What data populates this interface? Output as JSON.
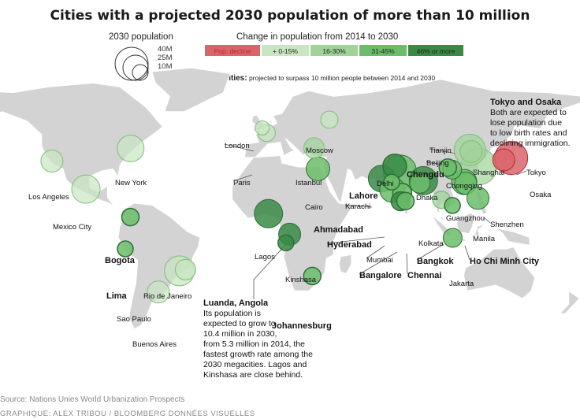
{
  "title": "Cities with a projected 2030 population of more than 10 million",
  "legend": {
    "size_title": "2030 population",
    "size_labels": [
      "40M",
      "25M",
      "10M"
    ],
    "color_title": "Change in population from 2014 to 2030",
    "color_bins": [
      {
        "label": "Pop. decline",
        "color": "#d9656b",
        "label_color": "#c0282f"
      },
      {
        "label": "+ 0-15%",
        "color": "#c7e6c1",
        "label_color": "#222222"
      },
      {
        "label": "16-30%",
        "color": "#9fd398",
        "label_color": "#222222"
      },
      {
        "label": "31-45%",
        "color": "#6bbd6a",
        "label_color": "#222222"
      },
      {
        "label": "46% or more",
        "color": "#3a8a46",
        "label_color": "#222222"
      }
    ],
    "bold_note_label": "Bolded cities:",
    "bold_note_text": " projected to surpass 10 million people between 2014 and 2030"
  },
  "cities": [
    {
      "name": "London",
      "bold": false,
      "bin": 1,
      "lon": -0.1,
      "lat": 51.5
    },
    {
      "name": "Paris",
      "bold": false,
      "bin": 1,
      "lon": 2.4,
      "lat": 48.9
    },
    {
      "name": "Moscow",
      "bold": false,
      "bin": 1,
      "lon": 37.6,
      "lat": 55.8
    },
    {
      "name": "Istanbul",
      "bold": false,
      "bin": 2,
      "lon": 29.0,
      "lat": 41.0
    },
    {
      "name": "Cairo",
      "bold": false,
      "bin": 3,
      "lon": 31.2,
      "lat": 30.0
    },
    {
      "name": "New York",
      "bold": false,
      "bin": 1,
      "lon": -74.0,
      "lat": 40.7
    },
    {
      "name": "Los Angeles",
      "bold": false,
      "bin": 1,
      "lon": -118.2,
      "lat": 34.1
    },
    {
      "name": "Mexico City",
      "bold": false,
      "bin": 1,
      "lon": -99.1,
      "lat": 19.4
    },
    {
      "name": "Bogota",
      "bold": true,
      "bin": 3,
      "lon": -74.1,
      "lat": 4.7
    },
    {
      "name": "Lima",
      "bold": true,
      "bin": 3,
      "lon": -77.0,
      "lat": -12.0
    },
    {
      "name": "Rio de Janeiro",
      "bold": false,
      "bin": 1,
      "lon": -43.2,
      "lat": -22.9
    },
    {
      "name": "Sao Paulo",
      "bold": false,
      "bin": 1,
      "lon": -46.6,
      "lat": -23.5
    },
    {
      "name": "Buenos Aires",
      "bold": false,
      "bin": 1,
      "lon": -58.4,
      "lat": -34.6
    },
    {
      "name": "Lagos",
      "bold": false,
      "bin": 4,
      "lon": 3.4,
      "lat": 6.5
    },
    {
      "name": "Kinshasa",
      "bold": false,
      "bin": 4,
      "lon": 15.3,
      "lat": -4.3
    },
    {
      "name": "Luanda, Angola",
      "bold": true,
      "bin": 4,
      "lon": 13.2,
      "lat": -8.8
    },
    {
      "name": "Johannesburg",
      "bold": true,
      "bin": 3,
      "lon": 28.0,
      "lat": -26.2
    },
    {
      "name": "Tokyo",
      "bold": false,
      "bin": 0,
      "lon": 139.7,
      "lat": 35.7
    },
    {
      "name": "Osaka",
      "bold": false,
      "bin": 0,
      "lon": 135.5,
      "lat": 34.7
    },
    {
      "name": "Beijing",
      "bold": false,
      "bin": 2,
      "lon": 116.4,
      "lat": 39.9
    },
    {
      "name": "Tianjin",
      "bold": false,
      "bin": 2,
      "lon": 117.2,
      "lat": 39.1
    },
    {
      "name": "Shanghai",
      "bold": false,
      "bin": 2,
      "lon": 121.5,
      "lat": 31.2
    },
    {
      "name": "Chengdu",
      "bold": true,
      "bin": 3,
      "lon": 104.1,
      "lat": 30.7
    },
    {
      "name": "Chongqing",
      "bold": false,
      "bin": 3,
      "lon": 106.5,
      "lat": 29.6
    },
    {
      "name": "Guangzhou",
      "bold": false,
      "bin": 3,
      "lon": 113.3,
      "lat": 23.1
    },
    {
      "name": "Shenzhen",
      "bold": false,
      "bin": 3,
      "lon": 114.1,
      "lat": 22.5
    },
    {
      "name": "Delhi",
      "bold": false,
      "bin": 3,
      "lon": 77.2,
      "lat": 28.6
    },
    {
      "name": "Lahore",
      "bold": true,
      "bin": 4,
      "lon": 74.3,
      "lat": 31.5
    },
    {
      "name": "Karachi",
      "bold": false,
      "bin": 4,
      "lon": 67.0,
      "lat": 24.9
    },
    {
      "name": "Dhaka",
      "bold": false,
      "bin": 4,
      "lon": 90.4,
      "lat": 23.8
    },
    {
      "name": "Kolkata",
      "bold": false,
      "bin": 3,
      "lon": 88.4,
      "lat": 22.6
    },
    {
      "name": "Ahmadabad",
      "bold": true,
      "bin": 3,
      "lon": 72.6,
      "lat": 23.0
    },
    {
      "name": "Hyderabad",
      "bold": true,
      "bin": 3,
      "lon": 78.5,
      "lat": 17.4
    },
    {
      "name": "Mumbai",
      "bold": false,
      "bin": 3,
      "lon": 72.9,
      "lat": 19.1
    },
    {
      "name": "Bangalore",
      "bold": true,
      "bin": 4,
      "lon": 77.6,
      "lat": 13.0
    },
    {
      "name": "Chennai",
      "bold": true,
      "bin": 3,
      "lon": 80.3,
      "lat": 13.1
    },
    {
      "name": "Bangkok",
      "bold": true,
      "bin": 2,
      "lon": 100.5,
      "lat": 13.8
    },
    {
      "name": "Ho Chi Minh City",
      "bold": true,
      "bin": 3,
      "lon": 106.7,
      "lat": 10.8
    },
    {
      "name": "Manila",
      "bold": false,
      "bin": 3,
      "lon": 121.0,
      "lat": 14.6
    },
    {
      "name": "Jakarta",
      "bold": false,
      "bin": 3,
      "lon": 106.8,
      "lat": -6.2
    }
  ],
  "annotations": {
    "tokyo_osaka": {
      "title": "Tokyo and Osaka",
      "lines": [
        "Both are expected to",
        "lose population due",
        "to low birth rates and",
        "declining immigration."
      ]
    },
    "luanda": {
      "title": "Luanda, Angola",
      "lines": [
        "Its population is",
        "expected to grow to",
        "10.4 million in 2030,",
        "from 5.3 million in 2014, the",
        "fastest growth rate among the",
        "2030 megacities. Lagos and",
        "Kinshasa are close behind."
      ]
    }
  },
  "source": "Source: Nations Unies World Urbanization Prospects",
  "credit": "GRAPHIQUE: ALEX TRIBOU / BLOOMBERG DONNÉES VISUELLES"
}
